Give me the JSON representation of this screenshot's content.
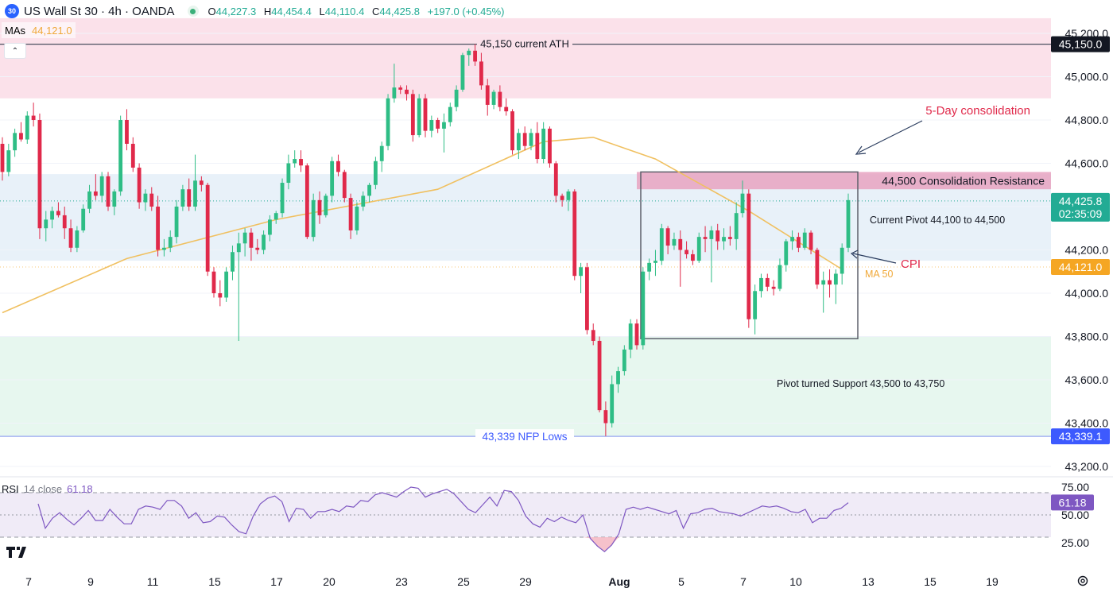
{
  "header": {
    "symbol_badge": "30",
    "title": "US Wall St 30 · 4h · OANDA",
    "open_label": "O",
    "open": "44,227.3",
    "high_label": "H",
    "high": "44,454.4",
    "low_label": "L",
    "low": "44,110.4",
    "close_label": "C",
    "close": "44,425.8",
    "change": "+197.0 (+0.45%)"
  },
  "indicators": {
    "mas_label": "MAs",
    "mas_value": "44,121.0",
    "rsi_label": "RSI",
    "rsi_params": "14 close",
    "rsi_value": "61.18"
  },
  "price_axis": {
    "ticks": [
      "45,200.0",
      "45,000.0",
      "44,800.0",
      "44,600.0",
      "44,400.0",
      "44,200.0",
      "44,000.0",
      "43,800.0",
      "43,600.0",
      "43,400.0",
      "43,200.0"
    ],
    "badges": {
      "ath": "45,150.0",
      "last_price": "44,425.8",
      "countdown": "02:35:09",
      "ma": "44,121.0",
      "nfp": "43,339.1"
    }
  },
  "rsi_axis": {
    "ticks": [
      "75.00",
      "50.00",
      "25.00"
    ],
    "badge": "61.18"
  },
  "time_axis": {
    "labels": [
      "7",
      "9",
      "11",
      "15",
      "17",
      "20",
      "23",
      "25",
      "29",
      "Aug",
      "5",
      "7",
      "10",
      "13",
      "15",
      "19"
    ]
  },
  "annotations": {
    "ath": "45,150 current ATH",
    "five_day": "5-Day consolidation",
    "resistance": "44,500 Consolidation Resistance",
    "current_pivot": "Current Pivot 44,100 to 44,500",
    "cpi": "CPI",
    "ma50": "MA 50",
    "support": "Pivot turned Support 43,500 to 43,750",
    "nfp": "43,339 NFP Lows"
  },
  "colors": {
    "up": "#2ebd85",
    "down": "#e0294a",
    "ma": "#f0c060",
    "ath_zone": "#fbe1ea",
    "pivot_zone": "#e8f1f9",
    "support_zone": "#e7f7ef",
    "resistance_box": "#e7a3c1",
    "rsi_line": "#7e57c2",
    "badge_dark": "#131722",
    "badge_green": "#22ab94",
    "badge_orange": "#f5a623",
    "badge_blue": "#3d5afe",
    "badge_purple": "#7e57c2"
  },
  "chart_data": {
    "type": "candlestick",
    "title": "US Wall St 30 · 4h · OANDA",
    "ylim": [
      43130,
      45270
    ],
    "x_tick_labels": [
      "7",
      "9",
      "11",
      "15",
      "17",
      "20",
      "23",
      "25",
      "29",
      "Aug",
      "5",
      "7",
      "10",
      "13",
      "15",
      "19"
    ],
    "candles": [
      [
        44690,
        44720,
        44520,
        44560
      ],
      [
        44560,
        44690,
        44540,
        44660
      ],
      [
        44660,
        44760,
        44630,
        44740
      ],
      [
        44740,
        44790,
        44700,
        44710
      ],
      [
        44710,
        44840,
        44690,
        44820
      ],
      [
        44820,
        44880,
        44770,
        44800
      ],
      [
        44800,
        44830,
        44250,
        44300
      ],
      [
        44300,
        44380,
        44240,
        44340
      ],
      [
        44340,
        44400,
        44300,
        44380
      ],
      [
        44380,
        44420,
        44350,
        44360
      ],
      [
        44360,
        44400,
        44250,
        44300
      ],
      [
        44300,
        44340,
        44190,
        44210
      ],
      [
        44210,
        44310,
        44190,
        44290
      ],
      [
        44290,
        44410,
        44280,
        44390
      ],
      [
        44390,
        44500,
        44370,
        44470
      ],
      [
        44470,
        44550,
        44430,
        44450
      ],
      [
        44450,
        44560,
        44420,
        44540
      ],
      [
        44540,
        44560,
        44380,
        44400
      ],
      [
        44400,
        44480,
        44360,
        44470
      ],
      [
        44470,
        44820,
        44450,
        44800
      ],
      [
        44800,
        44850,
        44660,
        44690
      ],
      [
        44690,
        44720,
        44560,
        44580
      ],
      [
        44580,
        44600,
        44390,
        44420
      ],
      [
        44420,
        44480,
        44380,
        44460
      ],
      [
        44460,
        44490,
        44380,
        44400
      ],
      [
        44400,
        44450,
        44170,
        44200
      ],
      [
        44200,
        44250,
        44170,
        44210
      ],
      [
        44210,
        44290,
        44190,
        44260
      ],
      [
        44260,
        44430,
        44230,
        44400
      ],
      [
        44400,
        44500,
        44380,
        44480
      ],
      [
        44480,
        44530,
        44380,
        44400
      ],
      [
        44400,
        44640,
        44380,
        44520
      ],
      [
        44520,
        44540,
        44470,
        44500
      ],
      [
        44500,
        44510,
        44080,
        44100
      ],
      [
        44100,
        44120,
        43980,
        44000
      ],
      [
        44000,
        44060,
        43940,
        43980
      ],
      [
        43980,
        44120,
        43960,
        44100
      ],
      [
        44100,
        44220,
        44060,
        44190
      ],
      [
        44190,
        44280,
        43780,
        44230
      ],
      [
        44230,
        44300,
        44170,
        44280
      ],
      [
        44280,
        44300,
        44150,
        44210
      ],
      [
        44210,
        44250,
        44180,
        44200
      ],
      [
        44200,
        44290,
        44180,
        44270
      ],
      [
        44270,
        44360,
        44240,
        44340
      ],
      [
        44340,
        44380,
        44320,
        44370
      ],
      [
        44370,
        44530,
        44350,
        44510
      ],
      [
        44510,
        44640,
        44480,
        44600
      ],
      [
        44600,
        44660,
        44580,
        44620
      ],
      [
        44620,
        44660,
        44560,
        44590
      ],
      [
        44590,
        44600,
        44250,
        44260
      ],
      [
        44260,
        44460,
        44240,
        44430
      ],
      [
        44430,
        44470,
        44320,
        44360
      ],
      [
        44360,
        44460,
        44350,
        44450
      ],
      [
        44450,
        44630,
        44420,
        44610
      ],
      [
        44610,
        44640,
        44540,
        44560
      ],
      [
        44560,
        44570,
        44420,
        44440
      ],
      [
        44440,
        44460,
        44250,
        44290
      ],
      [
        44290,
        44420,
        44270,
        44400
      ],
      [
        44400,
        44470,
        44380,
        44450
      ],
      [
        44450,
        44510,
        44420,
        44500
      ],
      [
        44500,
        44630,
        44480,
        44610
      ],
      [
        44610,
        44700,
        44560,
        44680
      ],
      [
        44680,
        44920,
        44660,
        44900
      ],
      [
        44900,
        45060,
        44880,
        44950
      ],
      [
        44950,
        44960,
        44920,
        44940
      ],
      [
        44940,
        44960,
        44890,
        44920
      ],
      [
        44920,
        44940,
        44700,
        44730
      ],
      [
        44730,
        44920,
        44720,
        44900
      ],
      [
        44900,
        44920,
        44720,
        44750
      ],
      [
        44750,
        44820,
        44720,
        44800
      ],
      [
        44800,
        44810,
        44740,
        44760
      ],
      [
        44760,
        44830,
        44650,
        44790
      ],
      [
        44790,
        44880,
        44770,
        44860
      ],
      [
        44860,
        44960,
        44840,
        44940
      ],
      [
        44940,
        45110,
        44930,
        45100
      ],
      [
        45100,
        45130,
        45050,
        45120
      ],
      [
        45120,
        45150,
        45050,
        45070
      ],
      [
        45070,
        45110,
        44940,
        44960
      ],
      [
        44960,
        44990,
        44820,
        44870
      ],
      [
        44870,
        44940,
        44850,
        44930
      ],
      [
        44930,
        44960,
        44840,
        44860
      ],
      [
        44860,
        44900,
        44820,
        44840
      ],
      [
        44840,
        44850,
        44640,
        44660
      ],
      [
        44660,
        44760,
        44620,
        44740
      ],
      [
        44740,
        44770,
        44660,
        44680
      ],
      [
        44680,
        44760,
        44660,
        44740
      ],
      [
        44740,
        44790,
        44600,
        44620
      ],
      [
        44620,
        44790,
        44600,
        44760
      ],
      [
        44760,
        44770,
        44580,
        44600
      ],
      [
        44600,
        44610,
        44420,
        44450
      ],
      [
        44450,
        44460,
        44400,
        44430
      ],
      [
        44430,
        44480,
        44380,
        44470
      ],
      [
        44470,
        44480,
        44060,
        44080
      ],
      [
        44080,
        44140,
        44000,
        44120
      ],
      [
        44120,
        44140,
        43810,
        43830
      ],
      [
        43830,
        43860,
        43760,
        43780
      ],
      [
        43780,
        43800,
        43450,
        43460
      ],
      [
        43460,
        43500,
        43340,
        43400
      ],
      [
        43400,
        43620,
        43380,
        43580
      ],
      [
        43580,
        43660,
        43540,
        43640
      ],
      [
        43640,
        43760,
        43620,
        43740
      ],
      [
        43740,
        43880,
        43700,
        43860
      ],
      [
        43860,
        43880,
        43740,
        43760
      ],
      [
        43760,
        44120,
        43740,
        44100
      ],
      [
        44100,
        44160,
        44060,
        44140
      ],
      [
        44140,
        44200,
        44080,
        44150
      ],
      [
        44150,
        44320,
        44130,
        44300
      ],
      [
        44300,
        44310,
        44180,
        44220
      ],
      [
        44220,
        44280,
        44200,
        44250
      ],
      [
        44250,
        44290,
        44030,
        44200
      ],
      [
        44200,
        44240,
        44160,
        44180
      ],
      [
        44180,
        44200,
        44130,
        44150
      ],
      [
        44150,
        44280,
        44140,
        44260
      ],
      [
        44260,
        44310,
        44190,
        44250
      ],
      [
        44250,
        44310,
        44050,
        44290
      ],
      [
        44290,
        44320,
        44200,
        44240
      ],
      [
        44240,
        44300,
        44200,
        44260
      ],
      [
        44260,
        44310,
        44220,
        44250
      ],
      [
        44250,
        44420,
        44200,
        44370
      ],
      [
        44370,
        44520,
        44350,
        44460
      ],
      [
        44460,
        44480,
        43840,
        43880
      ],
      [
        43880,
        44040,
        43810,
        44010
      ],
      [
        44010,
        44090,
        43980,
        44070
      ],
      [
        44070,
        44090,
        44010,
        44030
      ],
      [
        44030,
        44060,
        43990,
        44020
      ],
      [
        44020,
        44160,
        44010,
        44130
      ],
      [
        44130,
        44250,
        44100,
        44240
      ],
      [
        44240,
        44290,
        44200,
        44260
      ],
      [
        44260,
        44280,
        44190,
        44210
      ],
      [
        44210,
        44300,
        44200,
        44280
      ],
      [
        44280,
        44290,
        44180,
        44200
      ],
      [
        44200,
        44210,
        44020,
        44040
      ],
      [
        44040,
        44100,
        43910,
        44060
      ],
      [
        44060,
        44110,
        43980,
        44040
      ],
      [
        44040,
        44110,
        43950,
        44090
      ],
      [
        44090,
        44230,
        44040,
        44210
      ],
      [
        44210,
        44460,
        44190,
        44430
      ]
    ],
    "ma50": [
      [
        0,
        43910
      ],
      [
        20,
        44160
      ],
      [
        44,
        44340
      ],
      [
        70,
        44480
      ],
      [
        87,
        44700
      ],
      [
        95,
        44720
      ],
      [
        105,
        44620
      ],
      [
        120,
        44380
      ],
      [
        135,
        44110
      ]
    ],
    "rsi": [
      60,
      38,
      47,
      52,
      46,
      41,
      47,
      54,
      45,
      45,
      55,
      48,
      42,
      42,
      55,
      58,
      57,
      55,
      63,
      63,
      58,
      47,
      52,
      43,
      44,
      49,
      48,
      41,
      35,
      33,
      49,
      60,
      65,
      67,
      62,
      44,
      56,
      55,
      47,
      53,
      53,
      55,
      53,
      58,
      57,
      63,
      62,
      68,
      70,
      68,
      66,
      71,
      75,
      74,
      66,
      69,
      71,
      73,
      69,
      62,
      55,
      52,
      59,
      66,
      58,
      72,
      71,
      63,
      49,
      42,
      39,
      47,
      44,
      48,
      45,
      43,
      50,
      29,
      22,
      17,
      23,
      33,
      55,
      57,
      55,
      57,
      55,
      53,
      51,
      54,
      38,
      51,
      52,
      55,
      56,
      53,
      52,
      51,
      49,
      52,
      55,
      58,
      57,
      58,
      56,
      53,
      52,
      55,
      43,
      47,
      47,
      54,
      56,
      61
    ]
  }
}
